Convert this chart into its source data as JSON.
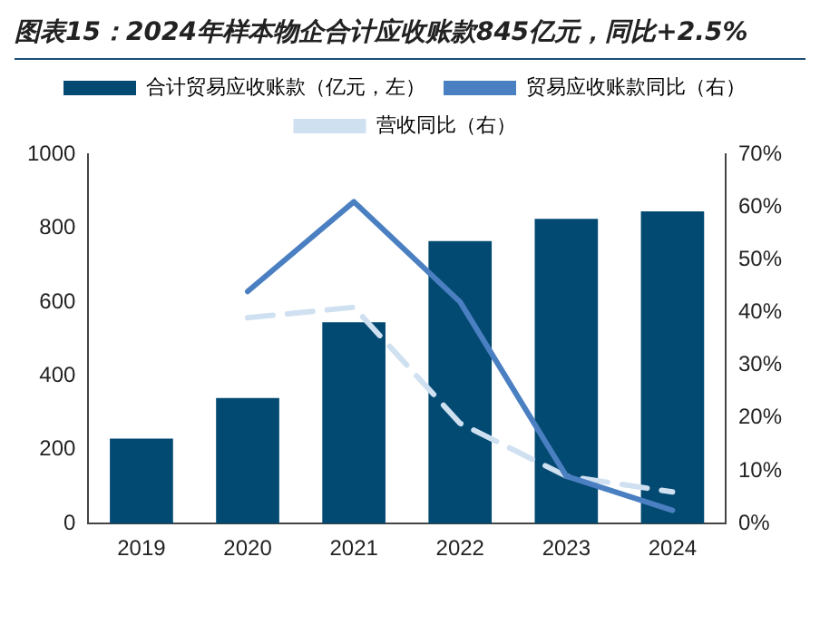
{
  "chart_data": {
    "type": "bar",
    "title": "图表15：2024年样本物企合计应收账款845亿元，同比+2.5%",
    "categories": [
      "2019",
      "2020",
      "2021",
      "2022",
      "2023",
      "2024"
    ],
    "series": [
      {
        "name": "合计贸易应收账款（亿元，左）",
        "color": "#034a72",
        "values": [
          230,
          340,
          545,
          765,
          825,
          845
        ]
      },
      {
        "name": "贸易应收账款同比（右）",
        "type": "line",
        "axis": "y2",
        "color": "#4a7fc1",
        "line_style": "solid",
        "values": [
          null,
          44,
          61,
          42,
          9,
          2.5
        ]
      },
      {
        "name": "营收同比（右）",
        "type": "line",
        "axis": "y2",
        "color": "#cfe0f1",
        "line_style": "dashed",
        "values": [
          null,
          39,
          41,
          19,
          9,
          6
        ]
      }
    ],
    "ylim": [
      0,
      1000
    ],
    "yticks": [
      0,
      200,
      400,
      600,
      800,
      1000
    ],
    "y2lim": [
      0,
      70
    ],
    "y2ticks": [
      {
        "value": 0,
        "label": "0%"
      },
      {
        "value": 10,
        "label": "10%"
      },
      {
        "value": 20,
        "label": "20%"
      },
      {
        "value": 30,
        "label": "30%"
      },
      {
        "value": 40,
        "label": "40%"
      },
      {
        "value": 50,
        "label": "50%"
      },
      {
        "value": 60,
        "label": "60%"
      },
      {
        "value": 70,
        "label": "70%"
      }
    ],
    "legend": "top",
    "grid": false,
    "marker": "none"
  }
}
